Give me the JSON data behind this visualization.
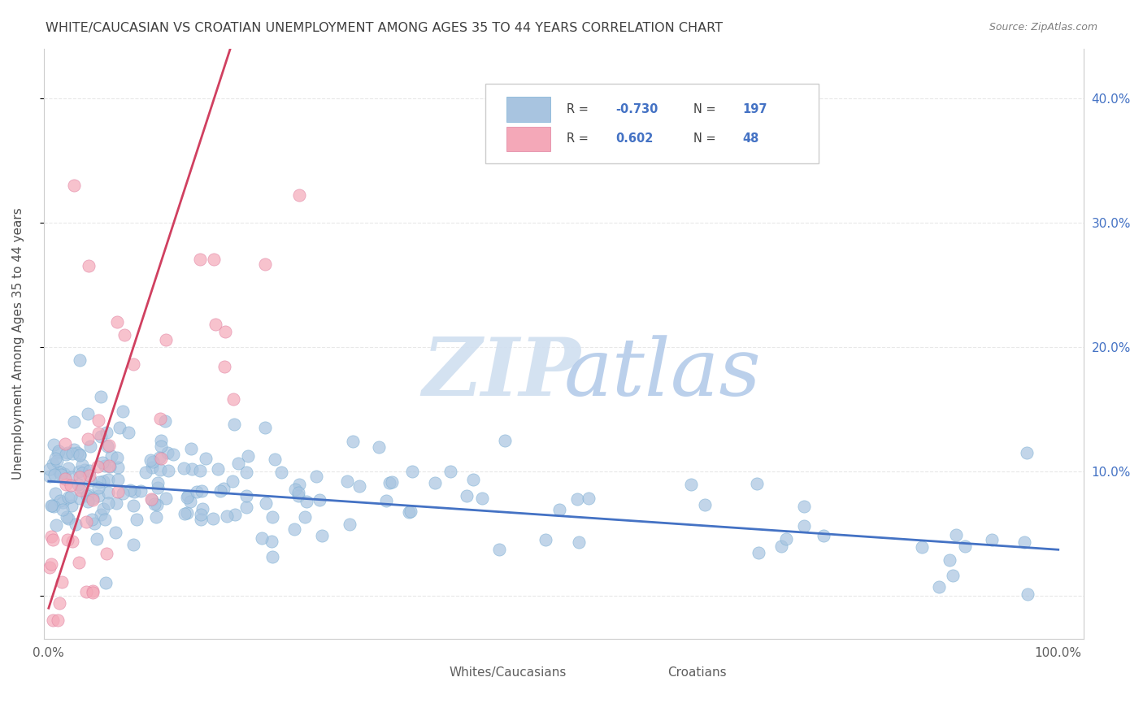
{
  "title": "WHITE/CAUCASIAN VS CROATIAN UNEMPLOYMENT AMONG AGES 35 TO 44 YEARS CORRELATION CHART",
  "source": "Source: ZipAtlas.com",
  "ylabel": "Unemployment Among Ages 35 to 44 years",
  "blue_R": -0.73,
  "blue_N": 197,
  "pink_R": 0.602,
  "pink_N": 48,
  "blue_color": "#a8c4e0",
  "pink_color": "#f4a8b8",
  "blue_edge_color": "#7bafd4",
  "pink_edge_color": "#e080a0",
  "trend_line_color_blue": "#4472c4",
  "trend_line_color_pink": "#d04060",
  "dashed_line_color": "#c0c0c0",
  "watermark_zip_color": "#d0dff0",
  "watermark_atlas_color": "#b0c8e8",
  "grid_color": "#e8e8e8",
  "title_color": "#404040",
  "tick_label_color_right": "#4472c4",
  "background_color": "#ffffff",
  "figwidth": 14.06,
  "figheight": 8.92
}
